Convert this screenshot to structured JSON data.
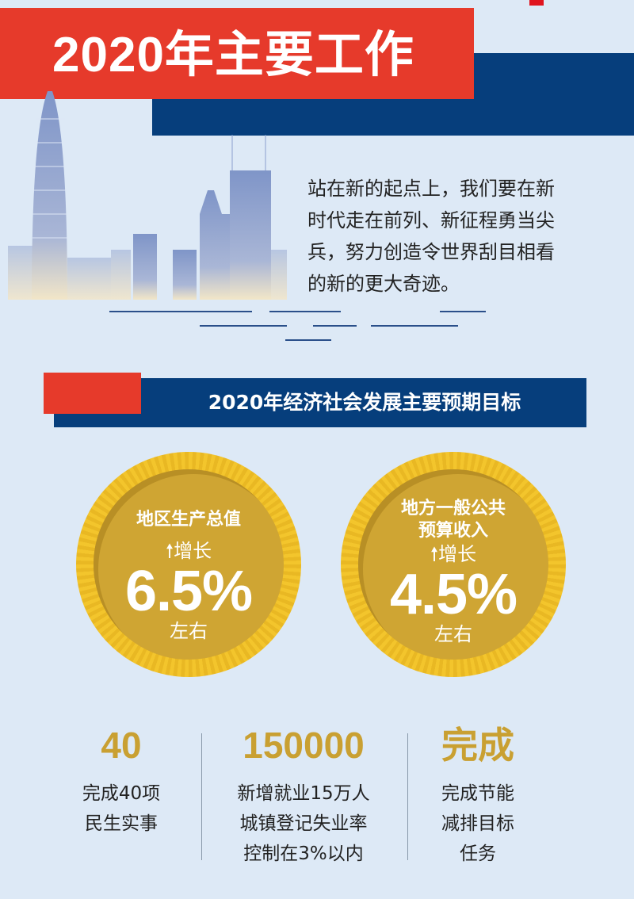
{
  "header": {
    "title": "2020年主要工作"
  },
  "intro": {
    "lines": [
      "站在新的起点上，我们要在新",
      "时代走在前列、新征程勇当尖",
      "兵，努力创造令世界刮目相看",
      "的新的更大奇迹。"
    ]
  },
  "section": {
    "title": "2020年经济社会发展主要预期目标"
  },
  "coins": [
    {
      "title_lines": [
        "地区生产总值"
      ],
      "growth_label": "增长",
      "value": "6.5%",
      "unit": "左右",
      "icon": "arrow-up-icon"
    },
    {
      "title_lines": [
        "地方一般公共",
        "预算收入"
      ],
      "growth_label": "增长",
      "value": "4.5%",
      "unit": "左右",
      "icon": "arrow-up-icon"
    }
  ],
  "stats": [
    {
      "value": "40",
      "lines": [
        "完成40项",
        "民生实事"
      ]
    },
    {
      "value": "150000",
      "lines": [
        "新增就业15万人",
        "城镇登记失业率",
        "控制在3%以内"
      ]
    },
    {
      "value": "完成",
      "lines": [
        "完成节能",
        "减排目标",
        "任务"
      ]
    }
  ],
  "colors": {
    "red": "#e63a2b",
    "navy": "#063e7c",
    "gold": "#cfa533",
    "gold_ring": "#f3c52c",
    "stat_gold": "#c9a032",
    "background": "#dde9f6"
  }
}
